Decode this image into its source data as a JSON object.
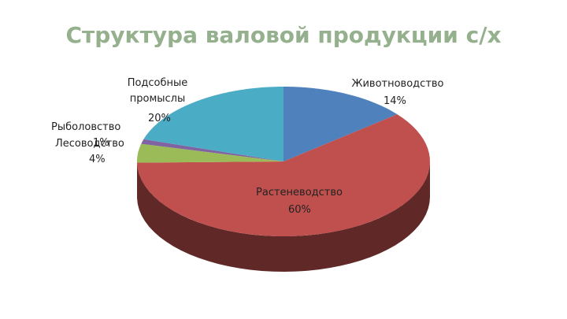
{
  "chart_data": {
    "type": "pie3d",
    "title": "Структура валовой продукции с/х",
    "categories": [
      "Животноводство",
      "Растеневодство",
      "Лесоводство",
      "Рыболовство",
      "Подсобные промыслы"
    ],
    "values": [
      14,
      60,
      4,
      1,
      20
    ],
    "value_labels": [
      "14%",
      "60%",
      "4%",
      "1%",
      "20%"
    ],
    "colors": [
      "#4f81bd",
      "#c0504d",
      "#9bbb59",
      "#8064a2",
      "#4bacc6"
    ]
  }
}
